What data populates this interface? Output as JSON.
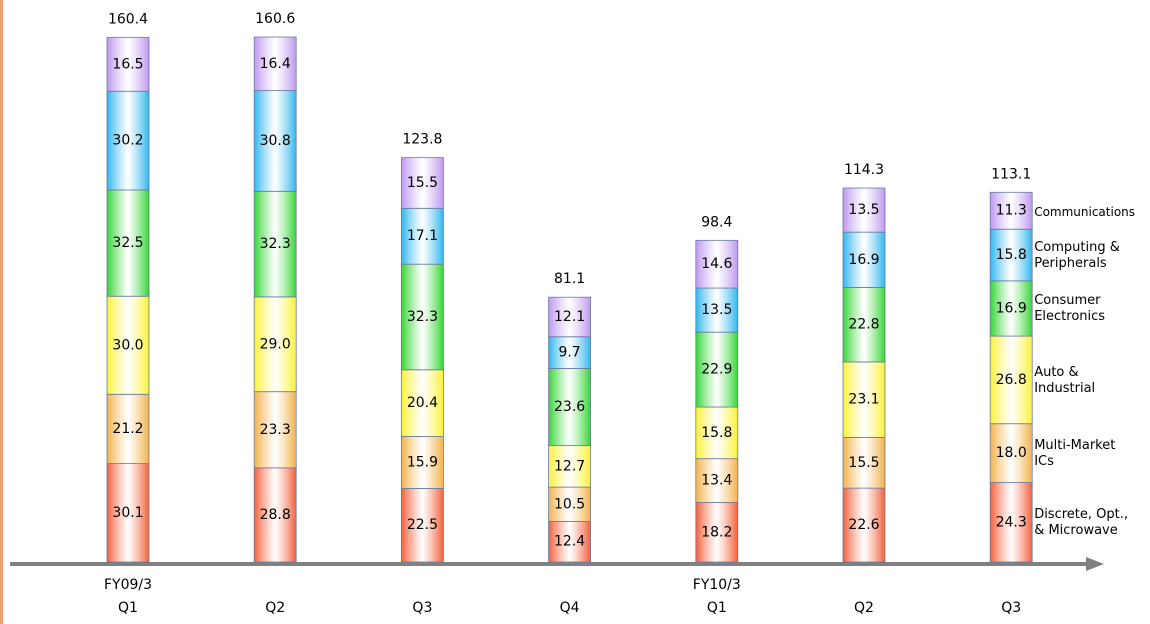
{
  "chart_data": {
    "type": "stacked_bar",
    "categories": [
      "FY09/3\nQ1",
      "Q2",
      "Q3",
      "Q4",
      "FY10/3\nQ1",
      "Q2",
      "Q3"
    ],
    "totals": [
      160.4,
      160.6,
      123.8,
      81.1,
      98.4,
      114.3,
      113.1
    ],
    "series": [
      {
        "name": "Discrete, Opt.,\n& Microwave",
        "color": "#f2603a",
        "values": [
          30.1,
          28.8,
          22.5,
          12.4,
          18.2,
          22.6,
          24.3
        ]
      },
      {
        "name": "Multi-Market\nICs",
        "color": "#f3b24a",
        "values": [
          21.2,
          23.3,
          15.9,
          10.5,
          13.4,
          15.5,
          18.0
        ],
        "value_labels": [
          "21.2",
          "23.3",
          "15.9",
          "10.5",
          "13.4",
          "15.5",
          "18.0"
        ]
      },
      {
        "name": "Auto &\nIndustrial",
        "color": "#fbf235",
        "values": [
          30.0,
          29.0,
          20.4,
          12.7,
          15.8,
          23.1,
          26.8
        ],
        "value_labels": [
          "30.0",
          "29.0",
          "20.4",
          "12.7",
          "15.8",
          "23.1",
          "26.8"
        ]
      },
      {
        "name": "Consumer\nElectronics",
        "color": "#35d535",
        "values": [
          32.5,
          32.3,
          32.3,
          23.6,
          22.9,
          22.8,
          16.9
        ]
      },
      {
        "name": "Computing &\nPeripherals",
        "color": "#30b6ee",
        "values": [
          30.2,
          30.8,
          17.1,
          9.7,
          13.5,
          16.9,
          15.8
        ]
      },
      {
        "name": "Communications",
        "color": "#be98ef",
        "values": [
          16.5,
          16.4,
          15.5,
          12.1,
          14.6,
          13.5,
          11.3
        ]
      }
    ]
  }
}
